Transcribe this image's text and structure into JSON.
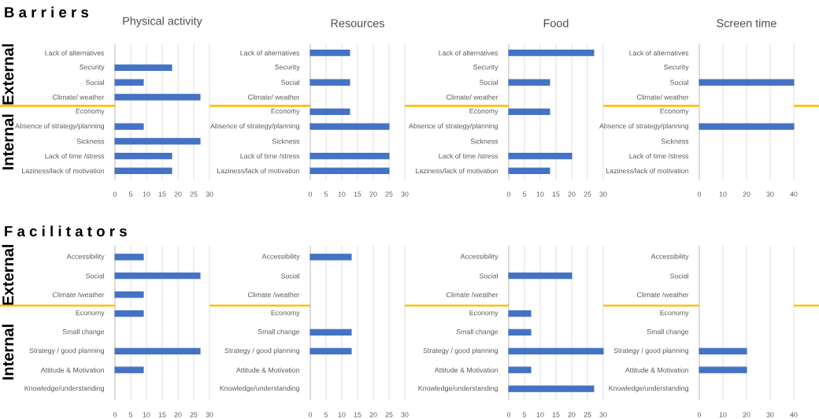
{
  "chart_data": [
    {
      "type": "bar",
      "orientation": "horizontal",
      "title": "Physical activity",
      "categories": [
        "Lack of alternatives",
        "Security",
        "Social",
        "Climate/ weather",
        "Economy",
        "Absence of strategy/planning",
        "Sickness",
        "Lack of time /stress",
        "Laziness/lack of motivation"
      ],
      "values": [
        null,
        18,
        9,
        27,
        null,
        9,
        27,
        18,
        18
      ],
      "color": "#4472c4",
      "xlim": [
        0,
        30
      ],
      "xticks": [
        0,
        5,
        10,
        15,
        20,
        25,
        30
      ],
      "grid": "x",
      "annotations": [
        "B a r r i e r s",
        "External",
        "Internal"
      ]
    },
    {
      "type": "bar",
      "orientation": "horizontal",
      "title": "Resources",
      "categories": [
        "Lack of alternatives",
        "Security",
        "Social",
        "Climate/ weather",
        "Economy",
        "Absence of strategy/planning",
        "Sickness",
        "Lack of time /stress",
        "Laziness/lack of motivation"
      ],
      "values": [
        12.5,
        null,
        12.5,
        null,
        12.5,
        25,
        null,
        25,
        25
      ],
      "color": "#4472c4",
      "xlim": [
        0,
        30
      ],
      "xticks": [
        0,
        5,
        10,
        15,
        20,
        25,
        30
      ],
      "grid": "x"
    },
    {
      "type": "bar",
      "orientation": "horizontal",
      "title": "Food",
      "categories": [
        "Lack of alternatives",
        "Security",
        "Social",
        "Climate/ weather",
        "Economy",
        "Absence of strategy/planning",
        "Sickness",
        "Lack of time /stress",
        "Laziness/lack of motivation"
      ],
      "values": [
        27,
        null,
        13,
        null,
        13,
        null,
        null,
        20,
        13
      ],
      "color": "#4472c4",
      "xlim": [
        0,
        30
      ],
      "xticks": [
        0,
        5,
        10,
        15,
        20,
        25,
        30
      ],
      "grid": "x"
    },
    {
      "type": "bar",
      "orientation": "horizontal",
      "title": "Screen time",
      "categories": [
        "Lack of alternatives",
        "Security",
        "Social",
        "Climate/ weather",
        "Economy",
        "Absence of strategy/planning",
        "Sickness",
        "Lack of time /stress",
        "Laziness/lack of motivation"
      ],
      "values": [
        null,
        null,
        40,
        null,
        null,
        40,
        null,
        null,
        null
      ],
      "color": "#4472c4",
      "xlim": [
        0,
        40
      ],
      "xticks": [
        0,
        10,
        20,
        30,
        40
      ],
      "grid": "x"
    },
    {
      "type": "bar",
      "orientation": "horizontal",
      "categories": [
        "Accessibility",
        "Social",
        "Climate /weather",
        "Economy",
        "Small change",
        "Strategy / good planning",
        "Attitude & Motivation",
        "Knowledge/understanding"
      ],
      "values": [
        9,
        27,
        9,
        9,
        null,
        27,
        9,
        null
      ],
      "color": "#4472c4",
      "xlim": [
        0,
        30
      ],
      "xticks": [
        0,
        5,
        10,
        15,
        20,
        25,
        30
      ],
      "grid": "x",
      "annotations": [
        "F a c i l i t a t o r s",
        "External",
        "Internal"
      ]
    },
    {
      "type": "bar",
      "orientation": "horizontal",
      "categories": [
        "Accessibility",
        "Social",
        "Climate /weather",
        "Economy",
        "Small change",
        "Strategy / good planning",
        "Attitude & Motivation",
        "Knowledge/understanding"
      ],
      "values": [
        13,
        null,
        null,
        null,
        13,
        13,
        null,
        null
      ],
      "color": "#4472c4",
      "xlim": [
        0,
        30
      ],
      "xticks": [
        0,
        5,
        10,
        15,
        20,
        25,
        30
      ],
      "grid": "x"
    },
    {
      "type": "bar",
      "orientation": "horizontal",
      "categories": [
        "Accessibility",
        "Social",
        "Climate /weather",
        "Economy",
        "Small change",
        "Strategy / good planning",
        "Attitude & Motivation",
        "Knowledge/understanding"
      ],
      "values": [
        null,
        20,
        null,
        7,
        7,
        30,
        7,
        27
      ],
      "color": "#4472c4",
      "xlim": [
        0,
        30
      ],
      "xticks": [
        0,
        5,
        10,
        15,
        20,
        25,
        30
      ],
      "grid": "x"
    },
    {
      "type": "bar",
      "orientation": "horizontal",
      "categories": [
        "Accessibility",
        "Social",
        "Climate /weather",
        "Economy",
        "Small change",
        "Strategy / good planning",
        "Attitude & Motivation",
        "Knowledge/understanding"
      ],
      "values": [
        null,
        null,
        null,
        null,
        null,
        20,
        20,
        null
      ],
      "color": "#4472c4",
      "xlim": [
        0,
        40
      ],
      "xticks": [
        0,
        10,
        20,
        30,
        40
      ],
      "grid": "x"
    }
  ]
}
